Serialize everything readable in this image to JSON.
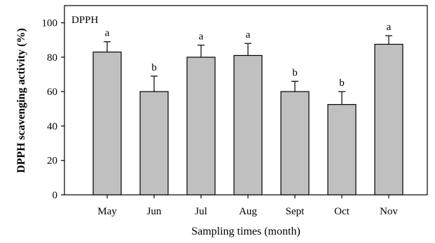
{
  "chart_data": {
    "type": "bar",
    "panel_label": "DPPH",
    "xlabel": "Sampling times (month)",
    "ylabel": "DPPH scavenging activity (%)",
    "ylim": [
      0,
      110
    ],
    "yticks": [
      0,
      20,
      40,
      60,
      80,
      100
    ],
    "categories": [
      "May",
      "Jun",
      "Jul",
      "Aug",
      "Sept",
      "Oct",
      "Nov"
    ],
    "values": [
      83,
      60,
      80,
      81,
      60,
      52.5,
      87.5
    ],
    "errors": [
      6,
      9,
      7,
      7,
      6,
      7.5,
      5
    ],
    "significance_letters": [
      "a",
      "b",
      "a",
      "a",
      "b",
      "b",
      "a"
    ],
    "bar_color": "#c0c0c0",
    "grid": false
  }
}
